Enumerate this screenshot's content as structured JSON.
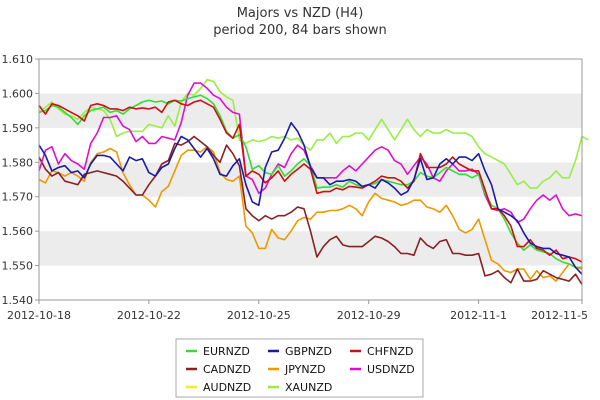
{
  "chart_data": {
    "type": "line",
    "title": "Majors vs NZD (H4)",
    "subtitle": "period 200, 84 bars shown",
    "xlabel": "",
    "ylabel": "",
    "ylim": [
      1.54,
      1.61
    ],
    "yticks": [
      "1.540",
      "1.550",
      "1.560",
      "1.570",
      "1.580",
      "1.590",
      "1.600",
      "1.610"
    ],
    "xtick_labels": [
      "2012-10-18",
      "2012-10-22",
      "2012-10-25",
      "2012-10-29",
      "2012-11-1",
      "2012-11-5"
    ],
    "xtick_index": [
      0,
      17,
      34,
      51,
      68,
      84
    ],
    "grid": "horizontal bands",
    "legend_position": "bottom",
    "series": [
      {
        "name": "EURNZD",
        "color": "#33dd33",
        "values": [
          1.5945,
          1.595,
          1.5965,
          1.596,
          1.5945,
          1.593,
          1.591,
          1.5935,
          1.595,
          1.5955,
          1.596,
          1.5945,
          1.595,
          1.594,
          1.5955,
          1.5965,
          1.5975,
          1.598,
          1.5975,
          1.5978,
          1.597,
          1.598,
          1.5978,
          1.5985,
          1.599,
          1.5995,
          1.5985,
          1.597,
          1.5935,
          1.589,
          1.587,
          1.588,
          1.5845,
          1.578,
          1.579,
          1.577,
          1.5765,
          1.579,
          1.576,
          1.5775,
          1.5795,
          1.581,
          1.579,
          1.5725,
          1.5728,
          1.5728,
          1.5735,
          1.5728,
          1.5745,
          1.5735,
          1.573,
          1.5735,
          1.5738,
          1.575,
          1.5745,
          1.574,
          1.5735,
          1.5735,
          1.5745,
          1.577,
          1.576,
          1.5755,
          1.577,
          1.5785,
          1.5775,
          1.5765,
          1.5765,
          1.5755,
          1.5765,
          1.571,
          1.5675,
          1.5665,
          1.5635,
          1.5595,
          1.5565,
          1.5545,
          1.556,
          1.5545,
          1.554,
          1.5535,
          1.552,
          1.551,
          1.5505,
          1.5495,
          1.5495
        ]
      },
      {
        "name": "GBPNZD",
        "color": "#1a1aaa",
        "values": [
          1.585,
          1.582,
          1.5775,
          1.5785,
          1.579,
          1.577,
          1.5775,
          1.5755,
          1.5795,
          1.582,
          1.582,
          1.5815,
          1.5795,
          1.5775,
          1.5815,
          1.5805,
          1.581,
          1.577,
          1.576,
          1.5785,
          1.5795,
          1.584,
          1.5875,
          1.5865,
          1.584,
          1.5815,
          1.584,
          1.581,
          1.5765,
          1.576,
          1.579,
          1.581,
          1.5735,
          1.5685,
          1.5675,
          1.5785,
          1.583,
          1.5835,
          1.587,
          1.5915,
          1.589,
          1.585,
          1.5785,
          1.5755,
          1.5755,
          1.5735,
          1.5745,
          1.5745,
          1.575,
          1.5745,
          1.573,
          1.5735,
          1.5725,
          1.575,
          1.574,
          1.5725,
          1.5705,
          1.5715,
          1.575,
          1.581,
          1.575,
          1.5755,
          1.5795,
          1.581,
          1.5795,
          1.5815,
          1.5815,
          1.5805,
          1.5825,
          1.5775,
          1.5735,
          1.5665,
          1.5655,
          1.5645,
          1.563,
          1.5595,
          1.5565,
          1.5555,
          1.555,
          1.555,
          1.5535,
          1.553,
          1.5525,
          1.5495,
          1.5475
        ]
      },
      {
        "name": "CHFNZD",
        "color": "#cc1111",
        "values": [
          1.5965,
          1.594,
          1.597,
          1.5965,
          1.5955,
          1.5945,
          1.5935,
          1.592,
          1.5965,
          1.597,
          1.5965,
          1.5955,
          1.5955,
          1.595,
          1.596,
          1.5955,
          1.5958,
          1.5955,
          1.596,
          1.5945,
          1.5975,
          1.598,
          1.597,
          1.5965,
          1.5975,
          1.598,
          1.597,
          1.596,
          1.5925,
          1.5885,
          1.587,
          1.591,
          1.576,
          1.5775,
          1.5765,
          1.574,
          1.5755,
          1.5775,
          1.5745,
          1.5765,
          1.578,
          1.5795,
          1.578,
          1.571,
          1.5715,
          1.5715,
          1.5725,
          1.572,
          1.573,
          1.5728,
          1.5725,
          1.5735,
          1.5745,
          1.576,
          1.5755,
          1.5755,
          1.5745,
          1.5725,
          1.5745,
          1.5825,
          1.5785,
          1.5785,
          1.5785,
          1.5795,
          1.5815,
          1.5795,
          1.5785,
          1.5775,
          1.5775,
          1.572,
          1.5665,
          1.5665,
          1.5645,
          1.5615,
          1.5555,
          1.5555,
          1.5575,
          1.555,
          1.5545,
          1.553,
          1.5545,
          1.552,
          1.5525,
          1.552,
          1.551
        ]
      },
      {
        "name": "CADNZD",
        "color": "#882222",
        "values": [
          1.5815,
          1.578,
          1.576,
          1.577,
          1.5745,
          1.574,
          1.5735,
          1.5765,
          1.577,
          1.5775,
          1.577,
          1.5765,
          1.576,
          1.5745,
          1.5725,
          1.5705,
          1.5705,
          1.5735,
          1.576,
          1.5795,
          1.5805,
          1.5855,
          1.585,
          1.586,
          1.5875,
          1.586,
          1.5845,
          1.582,
          1.58,
          1.585,
          1.5825,
          1.579,
          1.5665,
          1.5645,
          1.563,
          1.5645,
          1.5635,
          1.5645,
          1.5645,
          1.5655,
          1.567,
          1.5665,
          1.56,
          1.5525,
          1.5555,
          1.5575,
          1.5585,
          1.556,
          1.5555,
          1.5555,
          1.5555,
          1.557,
          1.5585,
          1.558,
          1.557,
          1.5555,
          1.5535,
          1.5535,
          1.553,
          1.558,
          1.556,
          1.555,
          1.557,
          1.5575,
          1.5535,
          1.5535,
          1.553,
          1.553,
          1.5535,
          1.547,
          1.5475,
          1.5485,
          1.5465,
          1.545,
          1.549,
          1.5455,
          1.5455,
          1.546,
          1.5485,
          1.5475,
          1.5465,
          1.546,
          1.5455,
          1.5475,
          1.5445
        ]
      },
      {
        "name": "JPYNZD",
        "color": "#ee9900",
        "values": [
          1.575,
          1.574,
          1.5775,
          1.577,
          1.576,
          1.577,
          1.576,
          1.5745,
          1.58,
          1.5825,
          1.583,
          1.584,
          1.583,
          1.577,
          1.5735,
          1.5705,
          1.5705,
          1.569,
          1.567,
          1.5715,
          1.573,
          1.5775,
          1.582,
          1.5835,
          1.5835,
          1.583,
          1.5845,
          1.583,
          1.577,
          1.575,
          1.5745,
          1.576,
          1.5615,
          1.5595,
          1.555,
          1.555,
          1.5605,
          1.558,
          1.5575,
          1.56,
          1.563,
          1.564,
          1.5635,
          1.5655,
          1.5655,
          1.566,
          1.566,
          1.5665,
          1.5675,
          1.5665,
          1.5645,
          1.5685,
          1.571,
          1.5695,
          1.569,
          1.5685,
          1.5675,
          1.568,
          1.569,
          1.569,
          1.567,
          1.5665,
          1.5655,
          1.5675,
          1.5645,
          1.5605,
          1.5595,
          1.5605,
          1.5635,
          1.5575,
          1.5515,
          1.5505,
          1.5485,
          1.548,
          1.549,
          1.549,
          1.546,
          1.5485,
          1.5465,
          1.547,
          1.5455,
          1.548,
          1.5505,
          1.5495,
          1.549
        ]
      },
      {
        "name": "USDNZD",
        "color": "#dd11cc",
        "values": [
          1.5775,
          1.5835,
          1.5845,
          1.5795,
          1.5825,
          1.5805,
          1.5795,
          1.578,
          1.5855,
          1.5885,
          1.593,
          1.593,
          1.5935,
          1.5905,
          1.5895,
          1.586,
          1.5875,
          1.5855,
          1.5855,
          1.5875,
          1.587,
          1.5865,
          1.5915,
          1.5995,
          1.603,
          1.603,
          1.6015,
          1.5995,
          1.5985,
          1.596,
          1.5945,
          1.594,
          1.576,
          1.575,
          1.571,
          1.5725,
          1.5765,
          1.5795,
          1.5785,
          1.5825,
          1.585,
          1.5835,
          1.579,
          1.5755,
          1.5755,
          1.5755,
          1.5755,
          1.5775,
          1.579,
          1.5775,
          1.5795,
          1.5815,
          1.5835,
          1.5845,
          1.5835,
          1.5805,
          1.5795,
          1.5765,
          1.579,
          1.5815,
          1.5795,
          1.5755,
          1.5745,
          1.5775,
          1.5795,
          1.5775,
          1.5775,
          1.578,
          1.5765,
          1.5705,
          1.5665,
          1.566,
          1.5665,
          1.5655,
          1.5625,
          1.5635,
          1.5665,
          1.569,
          1.5705,
          1.569,
          1.5705,
          1.5665,
          1.5645,
          1.565,
          1.5645
        ]
      },
      {
        "name": "AUDNZD",
        "color": "#eeee22",
        "values": []
      },
      {
        "name": "XAUNZD",
        "color": "#99ee44",
        "values": [
          1.5945,
          1.596,
          1.5975,
          1.5955,
          1.594,
          1.5935,
          1.5925,
          1.5945,
          1.596,
          1.5955,
          1.595,
          1.5925,
          1.5875,
          1.5885,
          1.589,
          1.589,
          1.589,
          1.591,
          1.5905,
          1.59,
          1.5935,
          1.5905,
          1.5975,
          1.6,
          1.5995,
          1.6015,
          1.604,
          1.6035,
          1.6005,
          1.599,
          1.598,
          1.5865,
          1.5855,
          1.5865,
          1.586,
          1.5865,
          1.5875,
          1.587,
          1.5875,
          1.5865,
          1.587,
          1.585,
          1.5835,
          1.5865,
          1.5865,
          1.5885,
          1.5855,
          1.5875,
          1.5875,
          1.5885,
          1.5885,
          1.5865,
          1.5895,
          1.5925,
          1.5895,
          1.5865,
          1.5895,
          1.5925,
          1.5895,
          1.5875,
          1.5895,
          1.5885,
          1.5885,
          1.5895,
          1.5885,
          1.5885,
          1.5885,
          1.5875,
          1.5845,
          1.5825,
          1.5815,
          1.5805,
          1.5795,
          1.5765,
          1.5735,
          1.5745,
          1.5725,
          1.5725,
          1.5745,
          1.5755,
          1.5775,
          1.5755,
          1.5755,
          1.5805,
          1.5875,
          1.5865
        ]
      }
    ]
  }
}
